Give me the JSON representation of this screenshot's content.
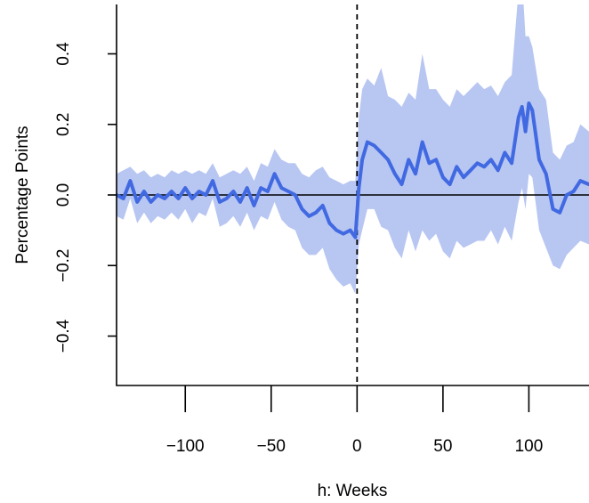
{
  "chart_data": {
    "type": "line",
    "title": "",
    "xlabel": "h: Weeks",
    "ylabel": "Percentage Points",
    "xlim": [
      -140,
      135
    ],
    "ylim": [
      -0.54,
      0.54
    ],
    "x_ticks": [
      -100,
      -50,
      0,
      50,
      100
    ],
    "x_tick_labels": [
      "−100",
      "−50",
      "0",
      "50",
      "100"
    ],
    "y_ticks": [
      -0.4,
      -0.2,
      0.0,
      0.2,
      0.4
    ],
    "y_tick_labels": [
      "−0.4",
      "−0.2",
      "0.0",
      "0.2",
      "0.4"
    ],
    "reference_lines": {
      "horizontal_y": 0,
      "vertical_x": 0
    },
    "colors": {
      "line": "#4169E1",
      "band": "#B8C6F2",
      "axis": "#000000"
    },
    "series": [
      {
        "x": [
          -140,
          -136,
          -132,
          -128,
          -124,
          -120,
          -116,
          -112,
          -108,
          -104,
          -100,
          -96,
          -92,
          -88,
          -84,
          -80,
          -76,
          -72,
          -68,
          -64,
          -60,
          -56,
          -52,
          -48,
          -44,
          -40,
          -36,
          -32,
          -28,
          -24,
          -20,
          -16,
          -12,
          -8,
          -4,
          -1,
          1,
          3,
          6,
          10,
          14,
          18,
          22,
          26,
          30,
          34,
          38,
          42,
          46,
          50,
          54,
          58,
          62,
          66,
          70,
          74,
          78,
          82,
          86,
          90,
          94,
          96,
          98,
          100,
          102,
          106,
          110,
          114,
          118,
          122,
          126,
          130,
          135
        ],
        "values": [
          0.0,
          -0.01,
          0.04,
          -0.02,
          0.01,
          -0.02,
          0.0,
          -0.01,
          0.01,
          -0.01,
          0.02,
          -0.01,
          0.01,
          0.0,
          0.04,
          -0.02,
          -0.01,
          0.01,
          -0.02,
          0.02,
          -0.03,
          0.02,
          0.01,
          0.06,
          0.02,
          0.01,
          0.0,
          -0.04,
          -0.06,
          -0.05,
          -0.03,
          -0.08,
          -0.1,
          -0.11,
          -0.1,
          -0.12,
          0.02,
          0.1,
          0.15,
          0.14,
          0.12,
          0.1,
          0.06,
          0.03,
          0.1,
          0.06,
          0.15,
          0.09,
          0.1,
          0.05,
          0.03,
          0.08,
          0.05,
          0.07,
          0.09,
          0.08,
          0.1,
          0.07,
          0.12,
          0.09,
          0.22,
          0.25,
          0.18,
          0.26,
          0.24,
          0.1,
          0.06,
          -0.04,
          -0.05,
          0.0,
          0.01,
          0.04,
          0.03
        ],
        "ci_upper": [
          0.06,
          0.07,
          0.08,
          0.06,
          0.07,
          0.05,
          0.06,
          0.05,
          0.07,
          0.06,
          0.07,
          0.06,
          0.07,
          0.06,
          0.09,
          0.05,
          0.06,
          0.07,
          0.06,
          0.08,
          0.04,
          0.09,
          0.08,
          0.13,
          0.1,
          0.09,
          0.09,
          0.06,
          0.05,
          0.07,
          0.08,
          0.05,
          0.04,
          0.03,
          0.04,
          0.04,
          0.22,
          0.3,
          0.33,
          0.31,
          0.36,
          0.28,
          0.27,
          0.25,
          0.29,
          0.27,
          0.4,
          0.3,
          0.3,
          0.27,
          0.25,
          0.3,
          0.28,
          0.3,
          0.32,
          0.3,
          0.31,
          0.28,
          0.32,
          0.34,
          0.58,
          0.62,
          0.45,
          0.45,
          0.42,
          0.3,
          0.27,
          0.12,
          0.1,
          0.14,
          0.15,
          0.2,
          0.18
        ],
        "ci_lower": [
          -0.06,
          -0.07,
          -0.01,
          -0.08,
          -0.05,
          -0.08,
          -0.06,
          -0.07,
          -0.05,
          -0.07,
          -0.04,
          -0.08,
          -0.05,
          -0.06,
          -0.01,
          -0.09,
          -0.08,
          -0.06,
          -0.09,
          -0.05,
          -0.1,
          -0.06,
          -0.07,
          -0.02,
          -0.07,
          -0.09,
          -0.1,
          -0.15,
          -0.17,
          -0.17,
          -0.15,
          -0.21,
          -0.24,
          -0.26,
          -0.25,
          -0.28,
          -0.14,
          -0.1,
          -0.04,
          -0.04,
          -0.09,
          -0.1,
          -0.15,
          -0.18,
          -0.1,
          -0.16,
          -0.1,
          -0.13,
          -0.11,
          -0.16,
          -0.18,
          -0.13,
          -0.15,
          -0.14,
          -0.13,
          -0.13,
          -0.1,
          -0.14,
          -0.09,
          -0.13,
          -0.02,
          0.02,
          -0.04,
          0.06,
          0.05,
          -0.1,
          -0.15,
          -0.2,
          -0.21,
          -0.17,
          -0.15,
          -0.13,
          -0.14
        ]
      }
    ]
  }
}
